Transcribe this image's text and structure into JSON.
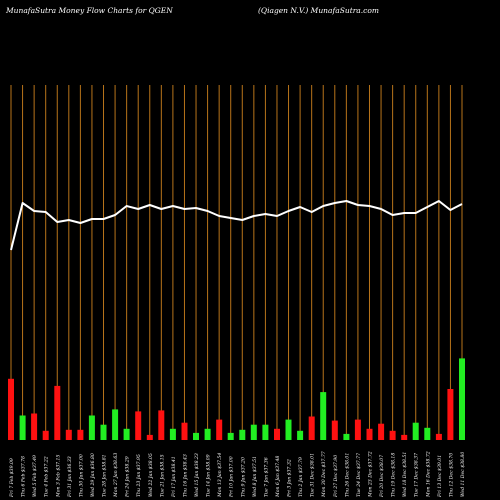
{
  "header": {
    "left_title": "MunafaSutra  Money Flow  Charts for QGEN",
    "right_title": "(Qiagen  N.V.) MunafaSutra.com"
  },
  "colors": {
    "background": "#000000",
    "grid": "#b8741a",
    "line": "#ffffff",
    "up": "#22ee22",
    "down": "#ff1111"
  },
  "chart_data": {
    "type": "bar",
    "title": "",
    "xlabel": "",
    "ylabel": "",
    "grid": true,
    "series": [
      {
        "name": "",
        "kind": "bar",
        "values": [
          60,
          24,
          26,
          9,
          53,
          10,
          10,
          24,
          15,
          30,
          11,
          28,
          5,
          29,
          11,
          17,
          7,
          11,
          20,
          7,
          10,
          15,
          15,
          11,
          20,
          9,
          23,
          47,
          19,
          6,
          20,
          11,
          16,
          9,
          5,
          17,
          12,
          6,
          50,
          80
        ],
        "direction": [
          "down",
          "up",
          "down",
          "down",
          "down",
          "down",
          "down",
          "up",
          "up",
          "up",
          "up",
          "down",
          "down",
          "down",
          "up",
          "down",
          "up",
          "up",
          "down",
          "up",
          "up",
          "up",
          "up",
          "down",
          "up",
          "up",
          "down",
          "up",
          "down",
          "up",
          "down",
          "down",
          "down",
          "down",
          "down",
          "up",
          "up",
          "down",
          "down",
          "up"
        ]
      },
      {
        "name": "",
        "kind": "line",
        "values": [
          5,
          52,
          44,
          43,
          33,
          35,
          32,
          36,
          36,
          40,
          49,
          46,
          50,
          46,
          49,
          46,
          47,
          44,
          39,
          37,
          35,
          39,
          41,
          39,
          44,
          48,
          43,
          49,
          52,
          54,
          50,
          49,
          46,
          40,
          42,
          42,
          48,
          54,
          45,
          51
        ]
      }
    ],
    "categories": [
      "Fri 7 Feb $39.09",
      "Thu 6 Feb $37.78",
      "Wed 5 Feb $37.49",
      "Tue 4 Feb $37.22",
      "Mon 3 Feb $37.15",
      "Fri 31 Jan $36.33",
      "Thu 30 Jan $37.00",
      "Wed 29 Jan $36.80",
      "Tue 28 Jan $38.81",
      "Mon 27 Jan $38.63",
      "Fri 24 Jan $38.29",
      "Thu 23 Jan $37.95",
      "Wed 22 Jan $38.05",
      "Tue 21 Jan $38.15",
      "Fri 17 Jan $38.41",
      "Thu 16 Jan $38.43",
      "Wed 15 Jan $38.23",
      "Tue 14 Jan $38.09",
      "Mon 13 Jan $37.54",
      "Fri 10 Jan $37.00",
      "Thu 9 Jan $37.20",
      "Wed 8 Jan $37.51",
      "Tue 7 Jan $37.36",
      "Mon 6 Jan $37.48",
      "Fri 3 Jan $37.32",
      "Thu 2 Jan $37.79",
      "Tue 31 Dec $38.01",
      "Mon 30 Dec $37.77",
      "Fri 27 Dec $37.90",
      "Thu 26 Dec $38.01",
      "Tue 24 Dec $37.77",
      "Mon 23 Dec $37.72",
      "Fri 20 Dec $38.07",
      "Thu 19 Dec $38.18",
      "Wed 18 Dec $38.51",
      "Tue 17 Dec $38.37",
      "Mon 16 Dec $38.72",
      "Fri 13 Dec $39.01",
      "Thu 12 Dec $38.70",
      "Wed 11 Dec $38.80"
    ]
  }
}
